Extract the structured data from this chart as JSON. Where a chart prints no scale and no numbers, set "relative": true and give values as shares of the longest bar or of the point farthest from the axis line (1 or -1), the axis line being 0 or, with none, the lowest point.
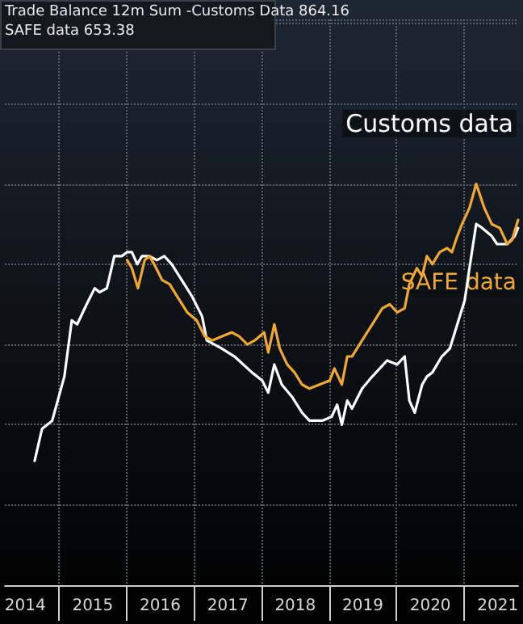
{
  "chart_data": {
    "type": "line",
    "relative": true,
    "grid": true,
    "legend": false,
    "marker": "none",
    "line_style": "solid",
    "annotations": [
      "Trade Balance 12m Sum -Customs Data 864.16",
      "SAFE data 653.38"
    ],
    "xlim": [
      2014.2,
      2021.8
    ],
    "xticks": [
      {
        "value": 2015,
        "label": null
      },
      {
        "value": 2016,
        "label": null
      },
      {
        "value": 2017,
        "label": null
      },
      {
        "value": 2018,
        "label": null
      },
      {
        "value": 2019,
        "label": null
      },
      {
        "value": 2020,
        "label": null
      },
      {
        "value": 2021,
        "label": null
      },
      {
        "value": 2014.5,
        "label": "2014"
      },
      {
        "value": 2015.5,
        "label": "2015"
      },
      {
        "value": 2016.5,
        "label": "2016"
      },
      {
        "value": 2017.5,
        "label": "2017"
      },
      {
        "value": 2018.5,
        "label": "2018"
      },
      {
        "value": 2019.5,
        "label": "2019"
      },
      {
        "value": 2020.5,
        "label": "2020"
      },
      {
        "value": 2021.5,
        "label": "2021"
      }
    ],
    "series": [
      {
        "name": "Customs data",
        "color": "#ffffff",
        "x": [
          2014.64,
          2014.75,
          2014.9,
          2015.08,
          2015.19,
          2015.27,
          2015.41,
          2015.53,
          2015.6,
          2015.71,
          2015.82,
          2015.93,
          2016.01,
          2016.08,
          2016.16,
          2016.23,
          2016.34,
          2016.45,
          2016.56,
          2016.67,
          2016.82,
          2016.97,
          2017.12,
          2017.19,
          2017.41,
          2017.6,
          2017.86,
          2018.01,
          2018.1,
          2018.19,
          2018.3,
          2018.45,
          2018.6,
          2018.71,
          2018.9,
          2019.04,
          2019.12,
          2019.19,
          2019.27,
          2019.34,
          2019.49,
          2019.64,
          2019.86,
          2020.01,
          2020.12,
          2020.19,
          2020.27,
          2020.38,
          2020.45,
          2020.53,
          2020.67,
          2020.79,
          2020.9,
          2021.01,
          2021.08,
          2021.18,
          2021.27,
          2021.41,
          2021.49,
          2021.64,
          2021.75,
          2021.8
        ],
        "values": [
          0.31,
          0.39,
          0.41,
          0.52,
          0.66,
          0.65,
          0.7,
          0.74,
          0.73,
          0.74,
          0.82,
          0.82,
          0.83,
          0.83,
          0.8,
          0.82,
          0.82,
          0.81,
          0.82,
          0.8,
          0.76,
          0.72,
          0.67,
          0.61,
          0.59,
          0.57,
          0.53,
          0.51,
          0.48,
          0.55,
          0.5,
          0.47,
          0.43,
          0.41,
          0.41,
          0.42,
          0.45,
          0.4,
          0.46,
          0.44,
          0.49,
          0.52,
          0.56,
          0.55,
          0.57,
          0.46,
          0.43,
          0.5,
          0.52,
          0.53,
          0.57,
          0.59,
          0.65,
          0.71,
          0.79,
          0.9,
          0.89,
          0.87,
          0.85,
          0.85,
          0.87,
          0.89
        ]
      },
      {
        "name": "SAFE data",
        "color": "#f0a830",
        "x": [
          2016.01,
          2016.08,
          2016.17,
          2016.27,
          2016.34,
          2016.41,
          2016.53,
          2016.64,
          2016.75,
          2016.9,
          2017.04,
          2017.16,
          2017.27,
          2017.41,
          2017.56,
          2017.67,
          2017.79,
          2017.9,
          2018.04,
          2018.1,
          2018.19,
          2018.27,
          2018.38,
          2018.49,
          2018.6,
          2018.71,
          2018.86,
          2019.01,
          2019.08,
          2019.19,
          2019.27,
          2019.34,
          2019.49,
          2019.64,
          2019.79,
          2019.9,
          2020.01,
          2020.12,
          2020.19,
          2020.3,
          2020.38,
          2020.45,
          2020.53,
          2020.64,
          2020.75,
          2020.82,
          2020.9,
          2020.97,
          2021.08,
          2021.18,
          2021.3,
          2021.41,
          2021.53,
          2021.64,
          2021.71,
          2021.8
        ],
        "values": [
          0.81,
          0.79,
          0.74,
          0.81,
          0.82,
          0.8,
          0.76,
          0.75,
          0.72,
          0.68,
          0.66,
          0.62,
          0.61,
          0.62,
          0.63,
          0.62,
          0.6,
          0.61,
          0.63,
          0.58,
          0.65,
          0.59,
          0.55,
          0.53,
          0.5,
          0.49,
          0.5,
          0.51,
          0.54,
          0.5,
          0.57,
          0.57,
          0.61,
          0.65,
          0.69,
          0.7,
          0.68,
          0.69,
          0.75,
          0.79,
          0.77,
          0.82,
          0.8,
          0.83,
          0.84,
          0.83,
          0.87,
          0.9,
          0.94,
          1.0,
          0.94,
          0.9,
          0.89,
          0.85,
          0.86,
          0.91
        ]
      }
    ]
  }
}
